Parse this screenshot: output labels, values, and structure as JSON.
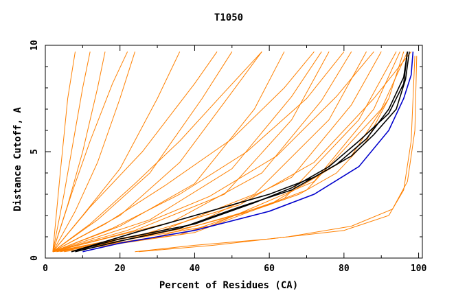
{
  "chart_data": {
    "type": "line",
    "title": "T1050",
    "xlabel": "Percent of Residues (CA)",
    "ylabel": "Distance Cutoff, A",
    "xlim": [
      0,
      101
    ],
    "ylim": [
      0,
      10
    ],
    "x_ticks": [
      0,
      20,
      40,
      60,
      80,
      100
    ],
    "y_ticks": [
      0,
      5,
      10
    ],
    "x_tick_labels": [
      "0",
      "20",
      "40",
      "60",
      "80",
      "100"
    ],
    "y_tick_labels": [
      "0",
      "5",
      "10"
    ],
    "grid": false,
    "legend": "none",
    "colors": {
      "background": "#ffffff",
      "frame": "#000000",
      "bulk": "#ff8000",
      "highlight_black": "#000000",
      "highlight_blue": "#0000cc"
    },
    "series": [
      {
        "color": "#ff8000",
        "x": [
          2,
          5,
          8,
          10,
          12
        ],
        "y": [
          0.3,
          3,
          6,
          8,
          9.7
        ]
      },
      {
        "color": "#ff8000",
        "x": [
          2,
          6,
          10,
          14,
          16
        ],
        "y": [
          0.3,
          2.5,
          5,
          8,
          9.7
        ]
      },
      {
        "color": "#ff8000",
        "x": [
          2,
          8,
          14,
          20,
          24
        ],
        "y": [
          0.3,
          2.2,
          4.5,
          7.5,
          9.7
        ]
      },
      {
        "color": "#ff8000",
        "x": [
          2,
          10,
          20,
          30,
          36
        ],
        "y": [
          0.3,
          2,
          4.2,
          7.5,
          9.7
        ]
      },
      {
        "color": "#ff8000",
        "x": [
          2,
          14,
          28,
          42,
          50
        ],
        "y": [
          0.3,
          1.8,
          4,
          7.5,
          9.7
        ]
      },
      {
        "color": "#ff8000",
        "x": [
          2,
          20,
          40,
          56,
          64
        ],
        "y": [
          0.3,
          1.5,
          3.5,
          7,
          9.7
        ]
      },
      {
        "color": "#ff8000",
        "x": [
          2,
          24,
          48,
          66,
          76
        ],
        "y": [
          0.3,
          1.3,
          3,
          6.5,
          9.7
        ]
      },
      {
        "color": "#ff8000",
        "x": [
          2,
          30,
          56,
          76,
          86
        ],
        "y": [
          0.3,
          1.2,
          3,
          6.5,
          9.7
        ]
      },
      {
        "color": "#ff8000",
        "x": [
          2,
          36,
          64,
          84,
          94
        ],
        "y": [
          0.3,
          1.1,
          2.8,
          6.5,
          9.7
        ]
      },
      {
        "color": "#ff8000",
        "x": [
          5,
          40,
          70,
          90,
          97
        ],
        "y": [
          0.3,
          1.2,
          3.2,
          7,
          9.7
        ]
      },
      {
        "color": "#ff8000",
        "x": [
          3,
          30,
          60,
          82,
          92,
          96
        ],
        "y": [
          0.3,
          1,
          2.5,
          4.8,
          7.5,
          9.7
        ]
      },
      {
        "color": "#ff8000",
        "x": [
          2,
          18,
          36,
          54,
          70,
          80
        ],
        "y": [
          0.3,
          1.4,
          3,
          5,
          7.5,
          9.7
        ]
      },
      {
        "color": "#ff8000",
        "x": [
          2,
          12,
          24,
          36,
          48,
          58
        ],
        "y": [
          0.3,
          1.6,
          3.5,
          5.5,
          7.8,
          9.7
        ]
      },
      {
        "color": "#ff8000",
        "x": [
          2,
          16,
          32,
          50,
          64,
          72
        ],
        "y": [
          0.3,
          1.6,
          3.4,
          5.6,
          8,
          9.7
        ]
      },
      {
        "color": "#ff8000",
        "x": [
          2,
          22,
          44,
          62,
          78,
          88
        ],
        "y": [
          0.3,
          1.3,
          2.9,
          4.8,
          7.6,
          9.7
        ]
      },
      {
        "color": "#ff8000",
        "x": [
          2,
          26,
          52,
          72,
          88,
          98
        ],
        "y": [
          0.3,
          1.1,
          2.5,
          4.5,
          7.5,
          9.7
        ]
      },
      {
        "color": "#ff8000",
        "x": [
          2,
          4,
          6,
          8
        ],
        "y": [
          0.3,
          4,
          7.5,
          9.7
        ]
      },
      {
        "color": "#ff8000",
        "x": [
          2,
          7,
          12,
          18,
          22
        ],
        "y": [
          0.3,
          3,
          5.5,
          8.2,
          9.7
        ]
      },
      {
        "color": "#ff8000",
        "x": [
          2,
          12,
          26,
          40,
          46
        ],
        "y": [
          0.3,
          2.4,
          5,
          8.2,
          9.7
        ]
      },
      {
        "color": "#ff8000",
        "x": [
          2,
          20,
          36,
          50,
          58
        ],
        "y": [
          0.3,
          2,
          4.5,
          7.8,
          9.7
        ]
      },
      {
        "color": "#ff8000",
        "x": [
          2,
          28,
          50,
          66,
          74
        ],
        "y": [
          0.3,
          1.8,
          4.2,
          7.6,
          9.7
        ]
      },
      {
        "color": "#ff8000",
        "x": [
          2,
          34,
          58,
          74,
          82
        ],
        "y": [
          0.3,
          1.7,
          4,
          7.4,
          9.7
        ]
      },
      {
        "color": "#ff8000",
        "x": [
          2,
          40,
          66,
          82,
          90
        ],
        "y": [
          0.3,
          1.6,
          3.8,
          7.2,
          9.7
        ]
      },
      {
        "color": "#ff8000",
        "x": [
          2,
          44,
          72,
          88,
          95
        ],
        "y": [
          0.3,
          1.5,
          3.6,
          7,
          9.7
        ]
      },
      {
        "color": "#ff8000",
        "x": [
          24,
          40,
          60,
          80,
          92,
          96,
          98,
          99
        ],
        "y": [
          0.3,
          0.6,
          0.9,
          1.3,
          2,
          3.2,
          5.5,
          9.5
        ]
      },
      {
        "color": "#ff8000",
        "x": [
          25,
          45,
          65,
          82,
          93,
          97,
          99,
          99.5
        ],
        "y": [
          0.3,
          0.6,
          1,
          1.5,
          2.3,
          3.6,
          6,
          9.5
        ]
      },
      {
        "color": "#ff8000",
        "x": [
          4,
          20,
          40,
          55,
          68,
          78,
          86,
          92
        ],
        "y": [
          0.3,
          0.8,
          1.5,
          2.2,
          3,
          4,
          5.5,
          7.5
        ]
      },
      {
        "color": "#0000cc",
        "x": [
          10,
          20,
          40,
          60,
          72,
          84,
          92,
          96,
          98,
          98.5
        ],
        "y": [
          0.3,
          0.7,
          1.3,
          2.2,
          3,
          4.3,
          6,
          7.5,
          8.6,
          9.7
        ]
      },
      {
        "color": "#000000",
        "x": [
          7,
          20,
          40,
          56,
          66,
          76,
          84,
          92,
          96,
          97
        ],
        "y": [
          0.3,
          0.9,
          1.6,
          2.6,
          3.3,
          4.3,
          5.5,
          6.8,
          8.2,
          9.7
        ]
      },
      {
        "color": "#000000",
        "x": [
          7,
          24,
          44,
          60,
          72,
          82,
          88,
          94,
          96.5,
          97.5
        ],
        "y": [
          0.3,
          1.2,
          2.2,
          3,
          3.8,
          4.8,
          5.8,
          7,
          8.4,
          9.7
        ]
      },
      {
        "color": "#000000",
        "x": [
          8,
          20,
          36,
          52,
          66,
          78,
          86,
          92,
          96,
          97
        ],
        "y": [
          0.3,
          0.8,
          1.4,
          2.4,
          3.2,
          4.4,
          5.6,
          7,
          8.5,
          9.7
        ]
      }
    ]
  }
}
